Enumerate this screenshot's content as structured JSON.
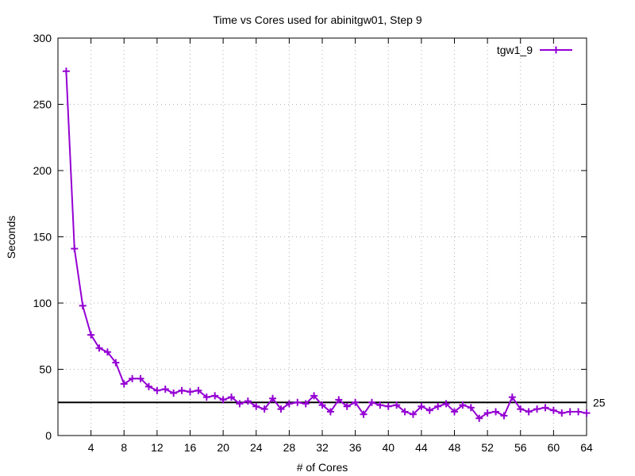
{
  "chart_data": {
    "type": "line",
    "title": "Time vs Cores used for abinitgw01, Step 9",
    "xlabel": "# of Cores",
    "ylabel": "Seconds",
    "xlim": [
      0,
      64
    ],
    "ylim": [
      0,
      300
    ],
    "xticks": [
      4,
      8,
      12,
      16,
      20,
      24,
      28,
      32,
      36,
      40,
      44,
      48,
      52,
      56,
      60,
      64
    ],
    "yticks": [
      0,
      50,
      100,
      150,
      200,
      250,
      300
    ],
    "grid": true,
    "legend_position": "top-right",
    "reference_line": {
      "y": 25,
      "label": "25",
      "color": "#000000"
    },
    "series": [
      {
        "name": "tgw1_9",
        "color": "#9400d3",
        "marker": "plus",
        "x": [
          1,
          2,
          3,
          4,
          5,
          6,
          7,
          8,
          9,
          10,
          11,
          12,
          13,
          14,
          15,
          16,
          17,
          18,
          19,
          20,
          21,
          22,
          23,
          24,
          25,
          26,
          27,
          28,
          29,
          30,
          31,
          32,
          33,
          34,
          35,
          36,
          37,
          38,
          39,
          40,
          41,
          42,
          43,
          44,
          45,
          46,
          47,
          48,
          49,
          50,
          51,
          52,
          53,
          54,
          55,
          56,
          57,
          58,
          59,
          60,
          61,
          62,
          63,
          64
        ],
        "values": [
          275,
          141,
          98,
          76,
          66,
          63,
          55,
          39,
          43,
          43,
          37,
          34,
          35,
          32,
          34,
          33,
          34,
          29,
          30,
          27,
          29,
          24,
          26,
          22,
          20,
          28,
          20,
          24,
          25,
          24,
          30,
          23,
          18,
          27,
          22,
          25,
          16,
          25,
          23,
          22,
          23,
          18,
          16,
          22,
          19,
          22,
          24,
          18,
          23,
          21,
          13,
          17,
          18,
          15,
          29,
          20,
          18,
          20,
          21,
          19,
          17,
          18,
          18,
          17
        ]
      }
    ]
  }
}
